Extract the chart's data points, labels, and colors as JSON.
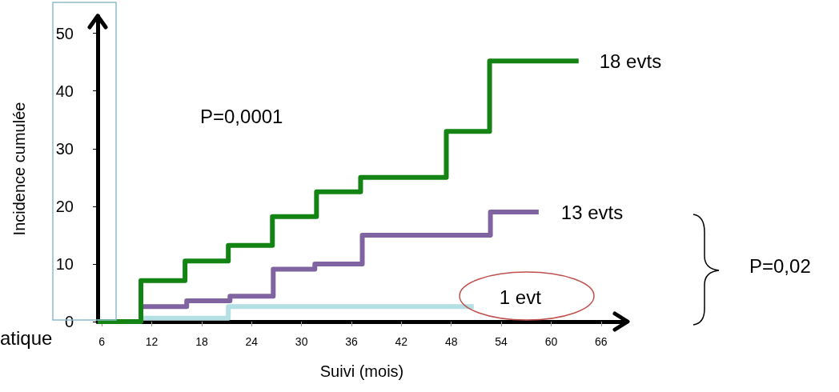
{
  "chart_data": {
    "type": "step",
    "xlabel": "Suivi (mois)",
    "ylabel": "Incidence cumulée",
    "xlim": [
      5.5,
      69
    ],
    "xticks": [
      6,
      12,
      18,
      24,
      30,
      36,
      42,
      48,
      54,
      60,
      66
    ],
    "ylim": [
      0,
      53
    ],
    "yticks": [
      0,
      10,
      20,
      30,
      40,
      50
    ],
    "annotations": [
      "P=0,0001",
      "P=0,02",
      "atique"
    ],
    "series": [
      {
        "name": "18 evts",
        "color": "#138313",
        "x": [
          5.5,
          10.7,
          16,
          21.2,
          26.5,
          31.8,
          37.1,
          47.4,
          52.6,
          63.3
        ],
        "values": [
          0,
          7.1,
          10.5,
          13.2,
          18.2,
          22.5,
          25,
          33,
          45.2,
          45.2
        ]
      },
      {
        "name": "13 evts",
        "color": "#8064a2",
        "x": [
          10.7,
          16.2,
          21.4,
          26.6,
          31.6,
          37.3,
          52.7,
          58.5
        ],
        "values": [
          2.6,
          3.6,
          4.4,
          9.1,
          10,
          15,
          19,
          19
        ]
      },
      {
        "name": "1 evt",
        "color": "#b4dfe3",
        "x": [
          10.7,
          21.2,
          50.7
        ],
        "values": [
          0.6,
          2.6,
          2.6
        ]
      }
    ]
  }
}
